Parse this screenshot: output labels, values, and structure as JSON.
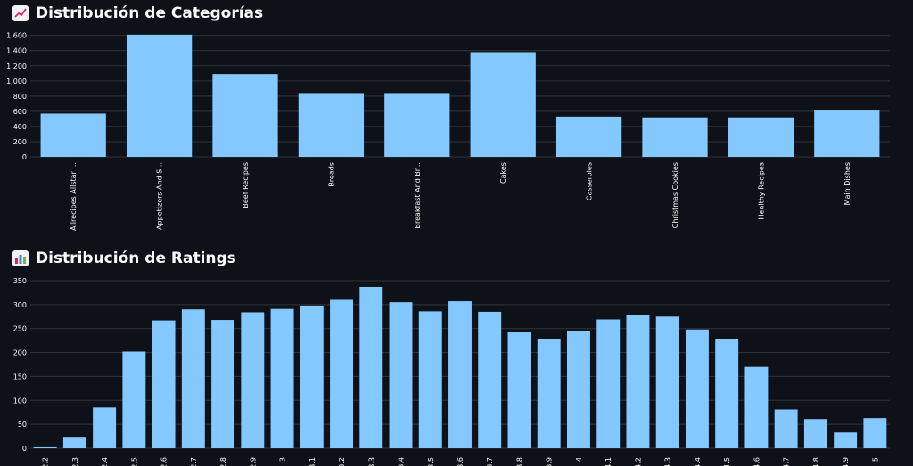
{
  "sections": {
    "categories": {
      "title": "Distribución de Categorías",
      "icon": "chart-increasing-icon"
    },
    "ratings": {
      "title": "Distribución de Ratings",
      "icon": "bar-chart-icon"
    }
  },
  "colors": {
    "background": "#0e1117",
    "bar": "#83c9ff",
    "grid": "#31333f",
    "text": "#fafafa"
  },
  "chart_data": [
    {
      "type": "bar",
      "title": "Distribución de Categorías",
      "categories": [
        "Allrecipes Allstar ...",
        "Appetizers And S...",
        "Beef Recipes",
        "Breads",
        "Breakfast And Br...",
        "Cakes",
        "Casseroles",
        "Christmas Cookies",
        "Healthy Recipes",
        "Main Dishes"
      ],
      "values": [
        570,
        1610,
        1090,
        840,
        840,
        1380,
        530,
        520,
        520,
        610
      ],
      "yticks": [
        "0",
        "200",
        "400",
        "600",
        "800",
        "1,000",
        "1,200",
        "1,400",
        "1,600"
      ],
      "ylim": [
        0,
        1620
      ],
      "grid": true
    },
    {
      "type": "bar",
      "title": "Distribución de Ratings",
      "categories": [
        "2.2",
        "2.3",
        "2.4",
        "2.5",
        "2.6",
        "2.7",
        "2.8",
        "2.9",
        "3",
        "3.1",
        "3.2",
        "3.3",
        "3.4",
        "3.5",
        "3.6",
        "3.7",
        "3.8",
        "3.9",
        "4",
        "4.1",
        "4.2",
        "4.3",
        "4.4",
        "4.5",
        "4.6",
        "4.7",
        "4.8",
        "4.9",
        "5"
      ],
      "values": [
        2,
        22,
        85,
        202,
        267,
        290,
        268,
        284,
        291,
        298,
        310,
        337,
        305,
        286,
        307,
        285,
        242,
        228,
        245,
        269,
        279,
        275,
        248,
        229,
        170,
        81,
        61,
        33,
        63
      ],
      "yticks": [
        "0",
        "50",
        "100",
        "150",
        "200",
        "250",
        "300",
        "350"
      ],
      "ylim": [
        0,
        350
      ],
      "grid": true
    }
  ]
}
